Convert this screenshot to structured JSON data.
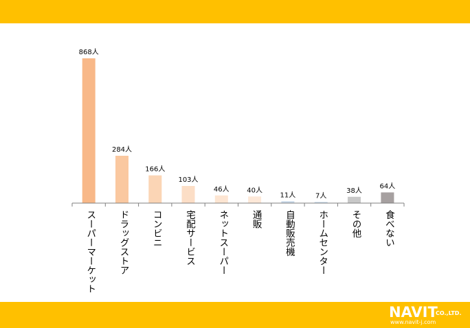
{
  "colors": {
    "band": "#FFC000",
    "axis": "#7f7f7f",
    "label": "#000000"
  },
  "logo": {
    "brand": "NAVIT",
    "company_suffix": "CO.,LTD.",
    "url": "www.navit-j.com"
  },
  "chart_data": {
    "type": "bar",
    "categories": [
      "スーパーマーケット",
      "ドラッグストア",
      "コンビニ",
      "宅配サービス",
      "ネットスーパー",
      "通販",
      "自動販売機",
      "ホームセンター",
      "その他",
      "食べない"
    ],
    "values": [
      868,
      284,
      166,
      103,
      46,
      40,
      11,
      7,
      38,
      64
    ],
    "data_labels": [
      "868人",
      "284人",
      "166人",
      "103人",
      "46人",
      "40人",
      "11人",
      "7人",
      "38人",
      "64人"
    ],
    "bar_colors": [
      "#F8B888",
      "#FAC8A0",
      "#FBD5B5",
      "#FCDEC6",
      "#FDE5D2",
      "#FDE8D8",
      "#C8D8E8",
      "#C8D8E8",
      "#C8C8C8",
      "#A6A0A0"
    ],
    "ylim": [
      0,
      868
    ],
    "grid": false,
    "legend": "none"
  }
}
